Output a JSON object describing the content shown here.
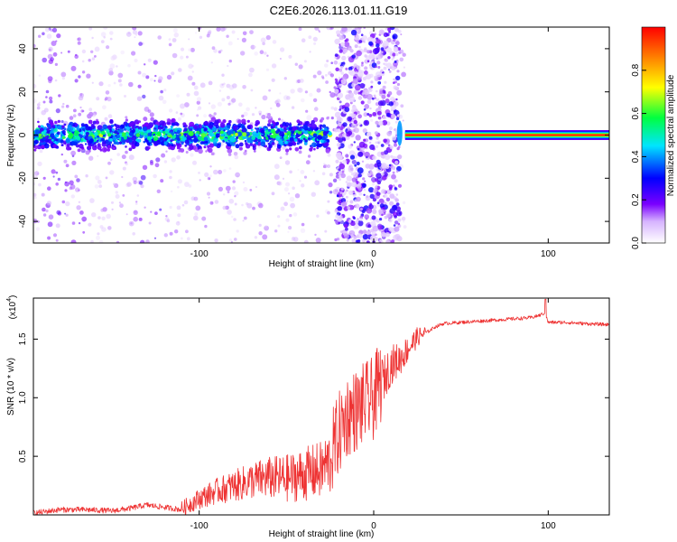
{
  "title": "C2E6.2026.113.01.11.G19",
  "colors": {
    "axis": "#000000",
    "snr_line": "#ee3333",
    "colormap": [
      "#ffffff",
      "#d6b3ff",
      "#7a00ff",
      "#0000ff",
      "#00e5ff",
      "#00ff40",
      "#ffff00",
      "#ff8000",
      "#ff0000"
    ]
  },
  "chart_data": [
    {
      "type": "heatmap",
      "name": "spectrogram",
      "xlabel": "Height of straight line (km)",
      "ylabel": "Frequency (Hz)",
      "xlim": [
        -195,
        135
      ],
      "ylim": [
        -50,
        50
      ],
      "xticks": [
        -100,
        0,
        100
      ],
      "xtick_labels": [
        "-100",
        "0",
        "100"
      ],
      "yticks": [
        -40,
        -20,
        0,
        20,
        40
      ],
      "ytick_labels": [
        "-40",
        "-20",
        "0",
        "20",
        "40"
      ],
      "colorbar": {
        "label": "Normalized spectral amplitude",
        "range": [
          0,
          1
        ],
        "ticks": [
          0.0,
          0.2,
          0.4,
          0.6,
          0.8
        ],
        "tick_labels": [
          "0.0",
          "0.2",
          "0.4",
          "0.6",
          "0.8"
        ]
      },
      "features": [
        {
          "region": [
            -195,
            -25
          ],
          "center_frequency_hz": 0,
          "spread_hz": 6,
          "peak_amplitude": 0.6,
          "note": "noisy speckled band near 0 Hz"
        },
        {
          "region": [
            -25,
            15
          ],
          "center_frequency_hz": 0,
          "spread_hz": 50,
          "peak_amplitude": 0.25,
          "note": "broadband noise"
        },
        {
          "region": [
            18,
            135
          ],
          "center_frequency_hz": 0,
          "spread_hz": 1,
          "peak_amplitude": 1.0,
          "note": "clean tone at 0 Hz"
        }
      ]
    },
    {
      "type": "line",
      "name": "snr",
      "xlabel": "Height of straight line (km)",
      "ylabel": "SNR (10 * v/v)",
      "scale_label": "(x10",
      "scale_exponent": "4",
      "scale_suffix": ")",
      "xlim": [
        -195,
        135
      ],
      "ylim": [
        0,
        1.85
      ],
      "xticks": [
        -100,
        0,
        100
      ],
      "xtick_labels": [
        "-100",
        "0",
        "100"
      ],
      "yticks": [
        0.5,
        1.0,
        1.5
      ],
      "ytick_labels": [
        "0.5",
        "1.0",
        "1.5"
      ],
      "series": [
        {
          "name": "SNR",
          "x": [
            -195,
            -180,
            -165,
            -150,
            -140,
            -130,
            -120,
            -110,
            -100,
            -90,
            -80,
            -70,
            -60,
            -50,
            -40,
            -30,
            -25,
            -20,
            -15,
            -10,
            -5,
            0,
            5,
            10,
            15,
            20,
            25,
            30,
            35,
            40,
            50,
            60,
            70,
            80,
            90,
            95,
            98,
            100,
            110,
            120,
            135
          ],
          "y": [
            0.01,
            0.04,
            0.04,
            0.03,
            0.05,
            0.08,
            0.06,
            0.04,
            0.12,
            0.18,
            0.22,
            0.26,
            0.28,
            0.27,
            0.3,
            0.33,
            0.42,
            0.62,
            0.78,
            0.82,
            0.88,
            0.92,
            1.1,
            1.25,
            1.3,
            1.4,
            1.5,
            1.55,
            1.6,
            1.63,
            1.64,
            1.65,
            1.66,
            1.67,
            1.68,
            1.7,
            1.72,
            1.64,
            1.64,
            1.63,
            1.62
          ]
        }
      ]
    }
  ]
}
